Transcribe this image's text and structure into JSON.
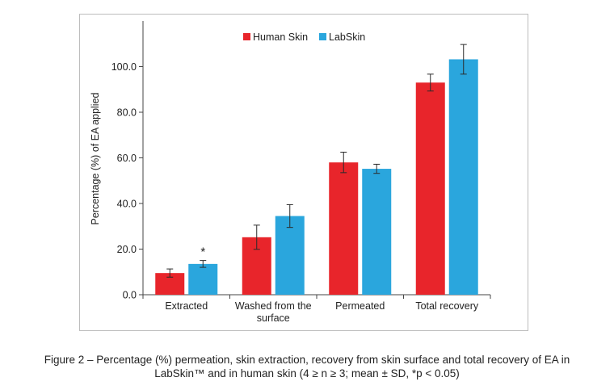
{
  "caption": {
    "line1": "Figure 2 – Percentage (%) permeation, skin extraction, recovery from skin surface and total recovery of EA in",
    "line2": "LabSkin™ and in human skin (4 ≥ n ≥ 3; mean ± SD, *p < 0.05)"
  },
  "colors": {
    "human_skin": "#e8252b",
    "labskin": "#2aa6dd",
    "error_bar": "#2b2b2b",
    "axis": "#444444"
  },
  "chart_data": {
    "type": "bar",
    "ylabel": "Percentage (%) of EA applied",
    "xlabel": "",
    "ylim": [
      0,
      120
    ],
    "yticks": [
      "0.0",
      "20.0",
      "40.0",
      "60.0",
      "80.0",
      "100.0"
    ],
    "categories": [
      [
        "Extracted"
      ],
      [
        "Washed from the",
        "surface"
      ],
      [
        "Permeated"
      ],
      [
        "Total recovery"
      ]
    ],
    "series": [
      {
        "name": "Human Skin",
        "values": [
          9.5,
          25.2,
          58.0,
          93.0
        ],
        "errors": [
          1.8,
          5.3,
          4.5,
          3.7
        ]
      },
      {
        "name": "LabSkin",
        "values": [
          13.5,
          34.5,
          55.2,
          103.2
        ],
        "errors": [
          1.5,
          5.0,
          2.0,
          6.5
        ]
      }
    ],
    "annotations": [
      {
        "category_index": 0,
        "series_index": 1,
        "text": "*"
      }
    ],
    "legend": "top-center",
    "grid": false
  }
}
